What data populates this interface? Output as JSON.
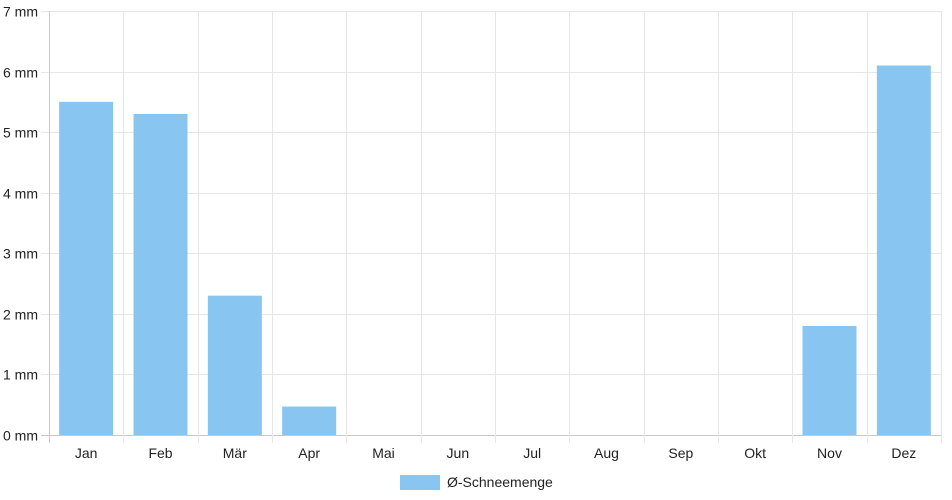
{
  "chart_data": {
    "type": "bar",
    "title": "",
    "xlabel": "",
    "ylabel": "",
    "categories": [
      "Jan",
      "Feb",
      "Mär",
      "Apr",
      "Mai",
      "Jun",
      "Jul",
      "Aug",
      "Sep",
      "Okt",
      "Nov",
      "Dez"
    ],
    "series": [
      {
        "name": "Ø-Schneemenge",
        "values": [
          5.5,
          5.3,
          2.3,
          0.47,
          0,
          0,
          0,
          0,
          0,
          0,
          1.8,
          6.1
        ],
        "color": "#88c5f0"
      }
    ],
    "y_ticks": [
      "0 mm",
      "1 mm",
      "2 mm",
      "3 mm",
      "4 mm",
      "5 mm",
      "6 mm",
      "7 mm"
    ],
    "ylim": [
      0,
      7
    ],
    "grid": true,
    "legend_position": "bottom"
  }
}
